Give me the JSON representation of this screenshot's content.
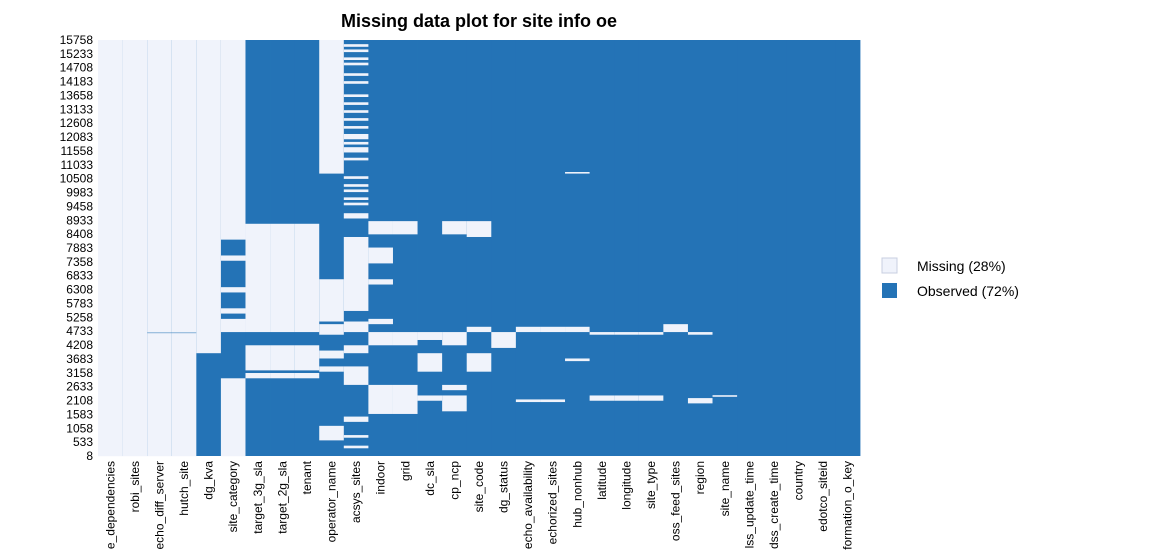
{
  "chart_data": {
    "type": "heatmap",
    "title": "Missing data plot for site info oe",
    "xlabel": "",
    "ylabel": "",
    "colors": {
      "missing": "#f0f3fb",
      "observed": "#2473b6"
    },
    "y_ticks": [
      "15758",
      "15233",
      "14708",
      "14183",
      "13658",
      "13133",
      "12608",
      "12083",
      "11558",
      "11033",
      "10508",
      "9983",
      "9458",
      "8933",
      "8408",
      "7883",
      "7358",
      "6833",
      "6308",
      "5783",
      "5258",
      "4733",
      "4208",
      "3683",
      "3158",
      "2633",
      "2108",
      "1583",
      "1058",
      "533",
      "8"
    ],
    "ylim": [
      8,
      15758
    ],
    "columns": [
      "e_dependencies",
      "robi_sites",
      "echo_diff_server",
      "hutch_site",
      "dg_kva",
      "site_category",
      "target_3g_sla",
      "target_2g_sla",
      "tenant",
      "operator_name",
      "acsys_sites",
      "indoor",
      "grid",
      "dc_sla",
      "cp_ncp",
      "site_code",
      "dg_status",
      "echo_availability",
      "echorized_sites",
      "hub_nonhub",
      "latitude",
      "longitude",
      "site_type",
      "oss_feed_sites",
      "region",
      "site_name",
      "lss_update_time",
      "dss_create_time",
      "country",
      "edotco_siteid",
      "formation_o_key"
    ],
    "missing_segments": [
      [
        [
          0,
          15758
        ]
      ],
      [
        [
          0,
          15758
        ]
      ],
      [
        [
          0,
          4660
        ],
        [
          4680,
          15758
        ]
      ],
      [
        [
          0,
          4660
        ],
        [
          4680,
          15758
        ]
      ],
      [
        [
          3900,
          15758
        ]
      ],
      [
        [
          0,
          2950
        ],
        [
          4700,
          5200
        ],
        [
          5400,
          5600
        ],
        [
          6200,
          6400
        ],
        [
          7400,
          7600
        ],
        [
          8200,
          15758
        ]
      ],
      [
        [
          2950,
          3150
        ],
        [
          3250,
          4200
        ],
        [
          4700,
          8800
        ]
      ],
      [
        [
          2950,
          3150
        ],
        [
          3250,
          4200
        ],
        [
          4700,
          8800
        ]
      ],
      [
        [
          2950,
          3150
        ],
        [
          3250,
          4200
        ],
        [
          4700,
          8800
        ]
      ],
      [
        [
          600,
          1150
        ],
        [
          3200,
          3400
        ],
        [
          3700,
          4000
        ],
        [
          4600,
          5000
        ],
        [
          5100,
          6700
        ],
        [
          10700,
          15758
        ]
      ],
      [
        [
          300,
          400
        ],
        [
          700,
          800
        ],
        [
          1300,
          1500
        ],
        [
          2700,
          3400
        ],
        [
          3900,
          4200
        ],
        [
          4700,
          5100
        ],
        [
          5500,
          8300
        ],
        [
          9000,
          9200
        ],
        [
          9500,
          9600
        ],
        [
          9700,
          9800
        ],
        [
          10000,
          10100
        ],
        [
          10200,
          10300
        ],
        [
          10500,
          10600
        ],
        [
          11200,
          11300
        ],
        [
          11500,
          11700
        ],
        [
          11800,
          11900
        ],
        [
          12000,
          12200
        ],
        [
          12400,
          12500
        ],
        [
          12700,
          12800
        ],
        [
          13000,
          13100
        ],
        [
          13300,
          13400
        ],
        [
          13600,
          13700
        ],
        [
          14100,
          14200
        ],
        [
          14400,
          14500
        ],
        [
          14800,
          14900
        ],
        [
          15000,
          15100
        ],
        [
          15300,
          15400
        ],
        [
          15500,
          15600
        ]
      ],
      [
        [
          1600,
          2700
        ],
        [
          4200,
          4700
        ],
        [
          5000,
          5200
        ],
        [
          6500,
          6700
        ],
        [
          7300,
          7900
        ],
        [
          8400,
          8900
        ]
      ],
      [
        [
          1600,
          2700
        ],
        [
          4200,
          4700
        ],
        [
          8400,
          8900
        ]
      ],
      [
        [
          2100,
          2300
        ],
        [
          3200,
          3900
        ],
        [
          4400,
          4700
        ]
      ],
      [
        [
          1700,
          2300
        ],
        [
          2500,
          2700
        ],
        [
          4200,
          4700
        ],
        [
          8400,
          8900
        ]
      ],
      [
        [
          3200,
          3900
        ],
        [
          4700,
          4900
        ],
        [
          8300,
          8900
        ]
      ],
      [
        [
          4100,
          4700
        ]
      ],
      [
        [
          2050,
          2150
        ],
        [
          4700,
          4900
        ]
      ],
      [
        [
          2050,
          2150
        ],
        [
          4700,
          4900
        ]
      ],
      [
        [
          3600,
          3700
        ],
        [
          4700,
          4900
        ],
        [
          10700,
          10760
        ]
      ],
      [
        [
          2100,
          2300
        ],
        [
          4600,
          4700
        ]
      ],
      [
        [
          2100,
          2300
        ],
        [
          4600,
          4700
        ]
      ],
      [
        [
          2100,
          2300
        ],
        [
          4600,
          4700
        ]
      ],
      [
        [
          4700,
          5000
        ]
      ],
      [
        [
          2000,
          2200
        ],
        [
          4600,
          4700
        ]
      ],
      [
        [
          2250,
          2310
        ]
      ],
      [],
      [],
      [],
      [],
      []
    ],
    "legend": {
      "position": "right",
      "entries": [
        {
          "label": "Missing (28%)",
          "key": "missing"
        },
        {
          "label": "Observed (72%)",
          "key": "observed"
        }
      ]
    },
    "grid": false
  }
}
